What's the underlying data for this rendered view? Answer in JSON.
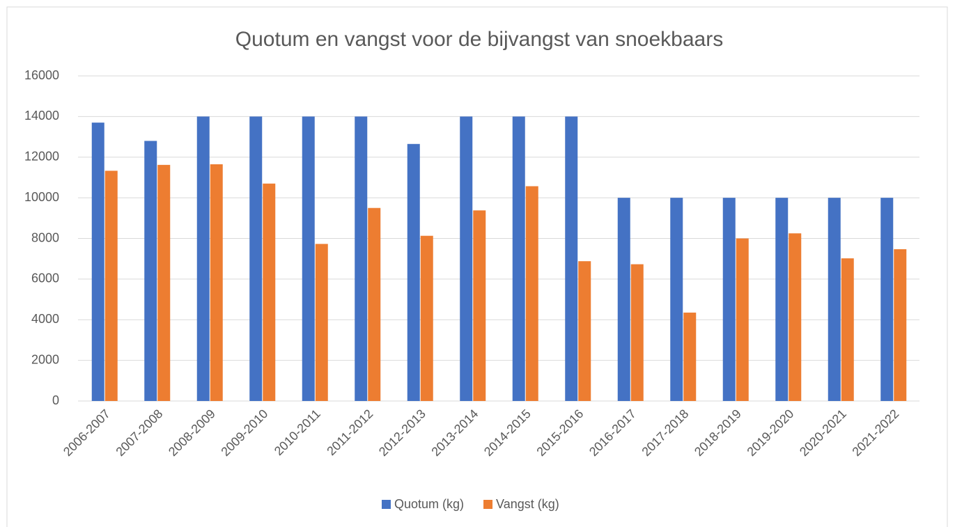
{
  "chart_data": {
    "type": "bar",
    "title": "Quotum en vangst voor de bijvangst van snoekbaars",
    "categories": [
      "2006-2007",
      "2007-2008",
      "2008-2009",
      "2009-2010",
      "2010-2011",
      "2011-2012",
      "2012-2013",
      "2013-2014",
      "2014-2015",
      "2015-2016",
      "2016-2017",
      "2017-2018",
      "2018-2019",
      "2019-2020",
      "2020-2021",
      "2021-2022"
    ],
    "series": [
      {
        "name": "Quotum (kg)",
        "color": "#4472c4",
        "values": [
          13700,
          12800,
          14000,
          14000,
          14000,
          14000,
          12650,
          14000,
          14000,
          14000,
          10000,
          10000,
          10000,
          10000,
          10000,
          10000
        ]
      },
      {
        "name": "Vangst (kg)",
        "color": "#ed7d31",
        "values": [
          11330,
          11620,
          11650,
          10700,
          7730,
          9500,
          8130,
          9380,
          10570,
          6880,
          6730,
          4350,
          8000,
          8250,
          7020,
          7470
        ]
      }
    ],
    "ylim": [
      0,
      16000
    ],
    "yticks": [
      0,
      2000,
      4000,
      6000,
      8000,
      10000,
      12000,
      14000,
      16000
    ],
    "grid": true,
    "legend": "bottom"
  }
}
